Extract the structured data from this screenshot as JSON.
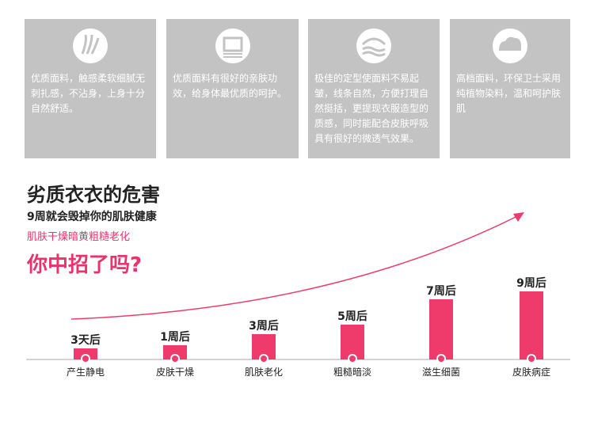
{
  "cards": [
    {
      "text": "优质面料，触感柔软细腻无刺扎感，不沾身，上身十分自然舒适。"
    },
    {
      "text": "优质面料有很好的亲肤功效，给身体最优质的呵护。"
    },
    {
      "text": "极佳的定型使面料不易起皱，线条自然，方便打理自然挺括，更提现衣服造型的质感，同时能配合皮肤呼吸具有很好的微透气效果。"
    },
    {
      "text": "高档面料，环保卫士采用纯植物染料，温和呵护肤肌"
    }
  ],
  "header": {
    "title": "劣质衣衣的危害",
    "subtitle": "9周就会毁掉你的肌肤健康",
    "tagline": "肌肤干燥暗黄粗糙老化",
    "question": "你中招了吗?"
  },
  "chart_data": {
    "type": "bar",
    "categories": [
      "产生静电",
      "皮肤干燥",
      "肌肤老化",
      "粗糙暗淡",
      "滋生细菌",
      "皮肤病症"
    ],
    "values": [
      14,
      18,
      32,
      44,
      76,
      86
    ],
    "time_labels": [
      "3天后",
      "1周后",
      "3周后",
      "5周后",
      "7周后",
      "9周后"
    ],
    "ylim": [
      0,
      100
    ],
    "color": "#ef3b6c",
    "trend_color": "#ef3b6c"
  }
}
